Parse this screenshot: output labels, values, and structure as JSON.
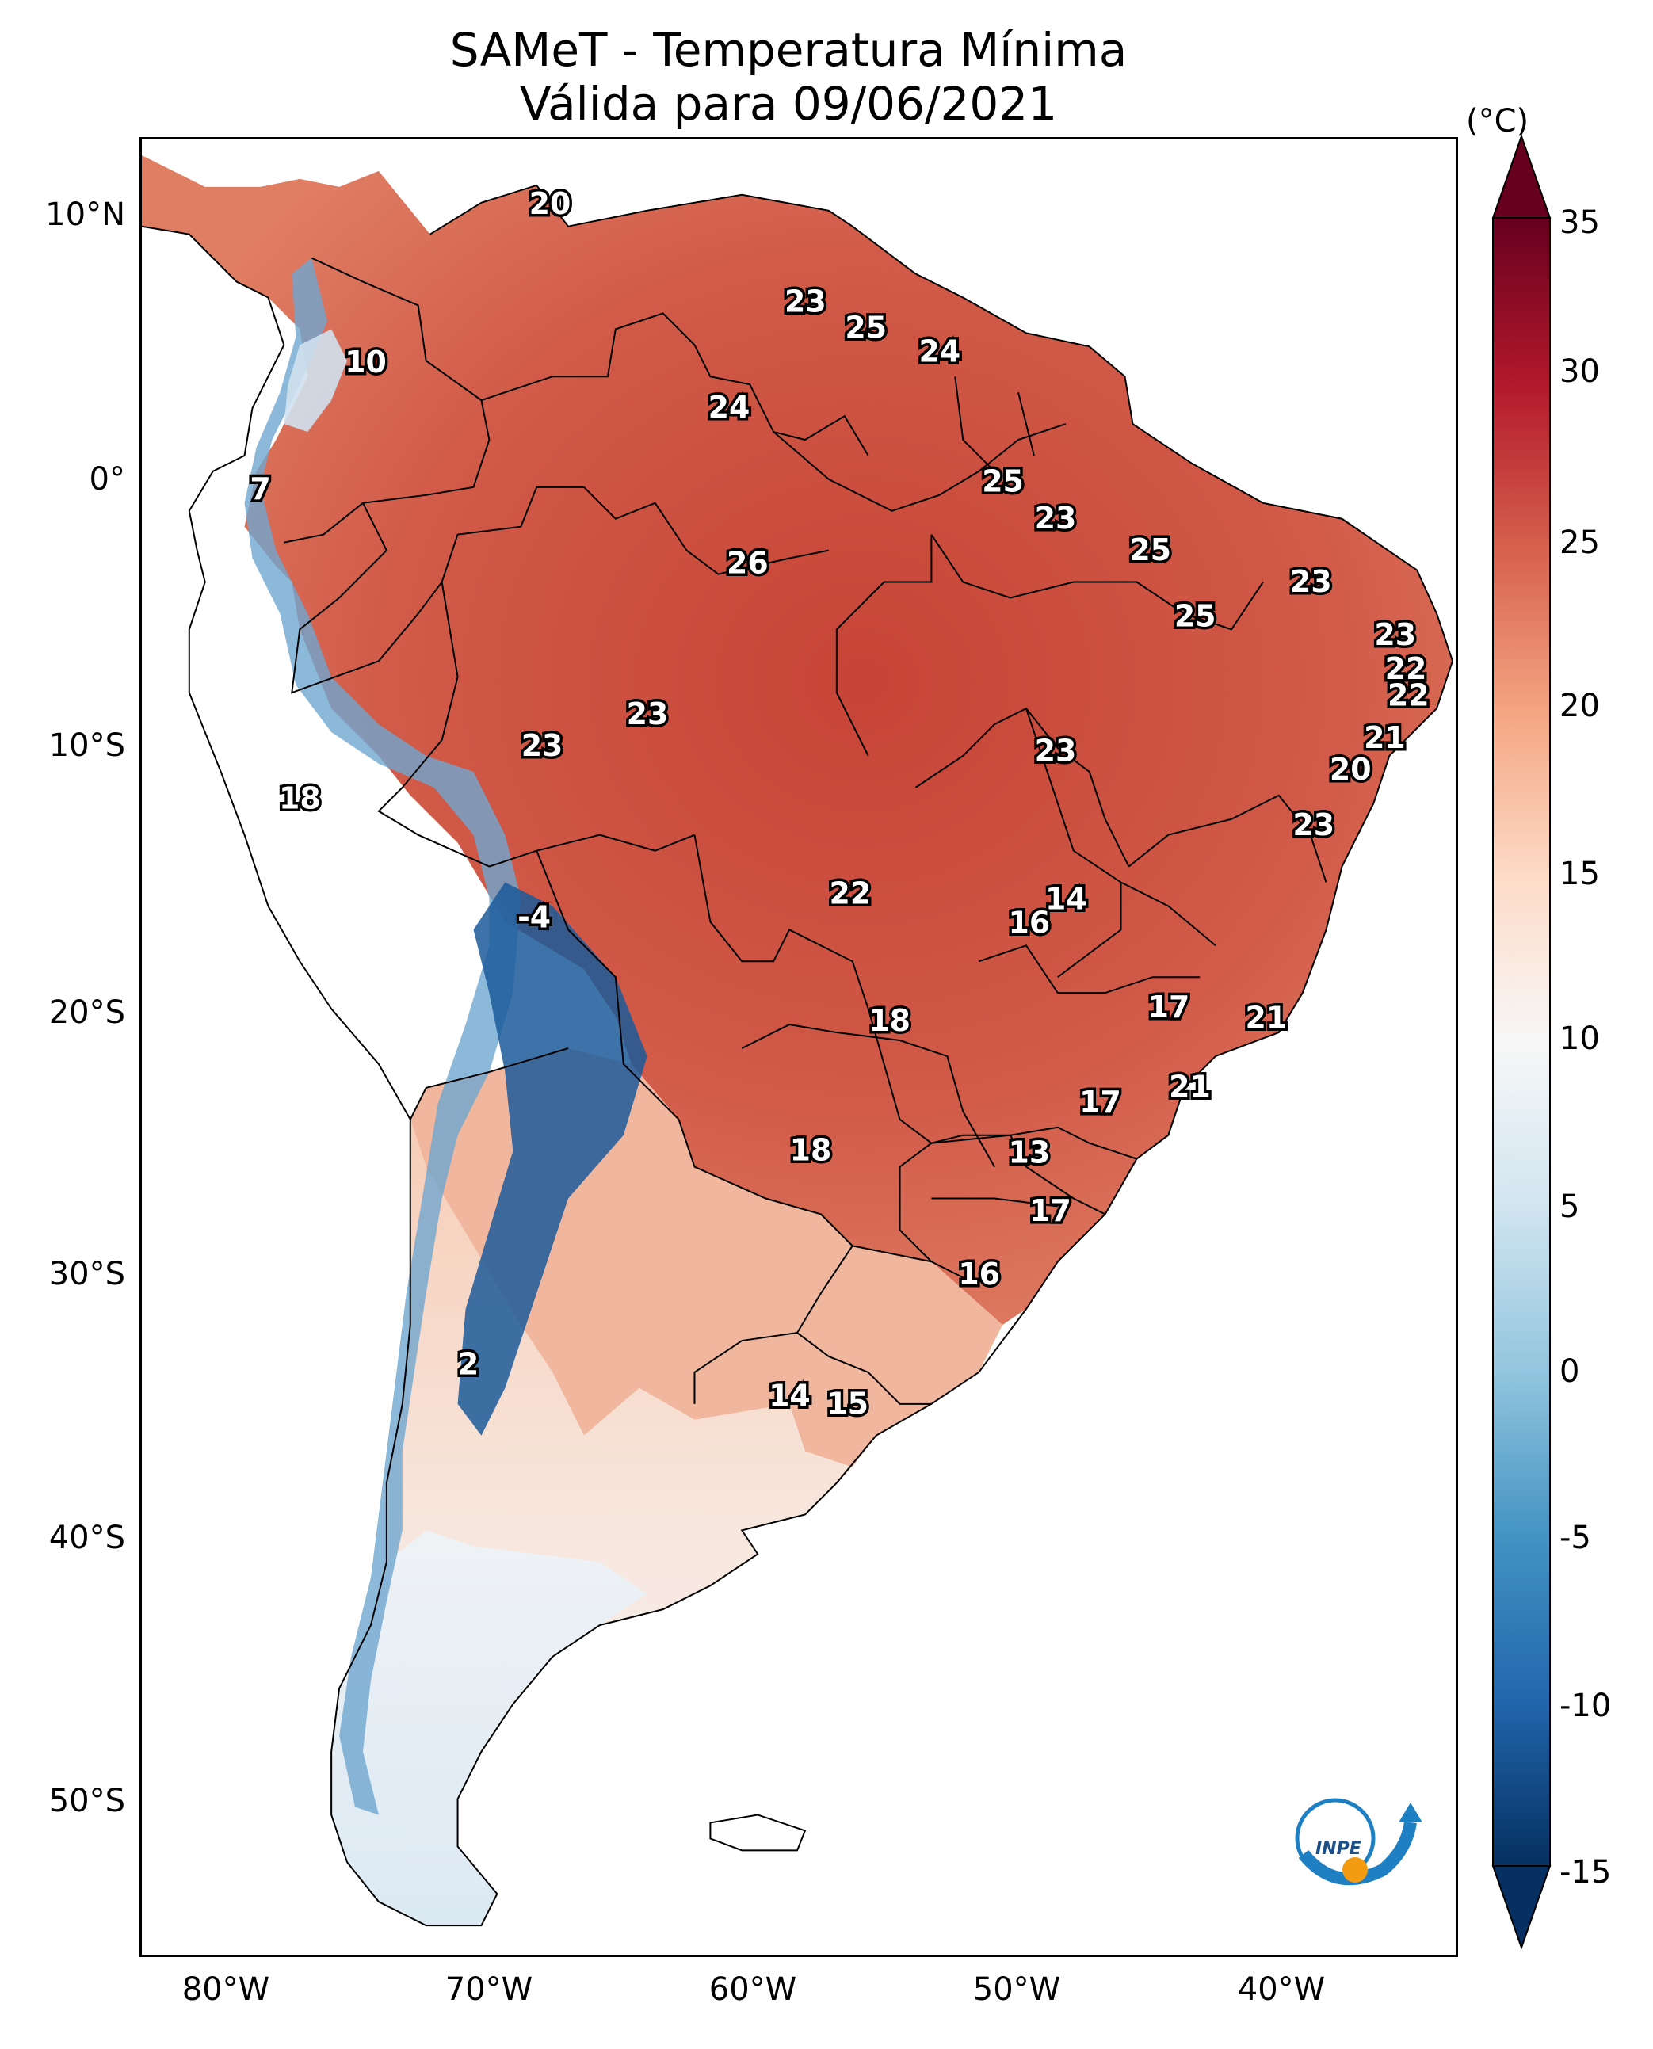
{
  "title": "SAMeT - Temperatura Mínima",
  "subtitle": "Válida para 09/06/2021",
  "colorbar": {
    "unit": "(°C)",
    "ticks": [
      "35",
      "30",
      "25",
      "20",
      "15",
      "10",
      "5",
      "0",
      "-5",
      "-10",
      "-15"
    ],
    "range": [
      -15,
      35
    ],
    "colors": [
      "#053061",
      "#2166ac",
      "#4393c3",
      "#92c5de",
      "#d1e5f0",
      "#f7f7f7",
      "#fddbc7",
      "#f4a582",
      "#d6604d",
      "#b2182b",
      "#67001f"
    ]
  },
  "axes": {
    "lat_labels": [
      "10°N",
      "0°",
      "10°S",
      "20°S",
      "30°S",
      "40°S",
      "50°S"
    ],
    "lon_labels": [
      "80°W",
      "70°W",
      "60°W",
      "50°W",
      "40°W"
    ]
  },
  "map": {
    "region": "South America",
    "point_values": [
      {
        "value": "20",
        "lon": -67.5,
        "lat": 10.5
      },
      {
        "value": "10",
        "lon": -74.5,
        "lat": 4.5
      },
      {
        "value": "7",
        "lon": -78.5,
        "lat": -0.3
      },
      {
        "value": "23",
        "lon": -57.8,
        "lat": 6.8
      },
      {
        "value": "25",
        "lon": -55.5,
        "lat": 5.8
      },
      {
        "value": "24",
        "lon": -52.7,
        "lat": 4.9
      },
      {
        "value": "24",
        "lon": -60.7,
        "lat": 2.8
      },
      {
        "value": "25",
        "lon": -50.3,
        "lat": 0.0
      },
      {
        "value": "23",
        "lon": -48.3,
        "lat": -1.4
      },
      {
        "value": "26",
        "lon": -60.0,
        "lat": -3.1
      },
      {
        "value": "25",
        "lon": -44.7,
        "lat": -2.6
      },
      {
        "value": "23",
        "lon": -38.6,
        "lat": -3.8
      },
      {
        "value": "25",
        "lon": -43.0,
        "lat": -5.1
      },
      {
        "value": "23",
        "lon": -35.4,
        "lat": -5.8
      },
      {
        "value": "22",
        "lon": -35.0,
        "lat": -7.1
      },
      {
        "value": "22",
        "lon": -34.9,
        "lat": -8.1
      },
      {
        "value": "21",
        "lon": -35.8,
        "lat": -9.7
      },
      {
        "value": "20",
        "lon": -37.1,
        "lat": -10.9
      },
      {
        "value": "23",
        "lon": -38.5,
        "lat": -13.0
      },
      {
        "value": "23",
        "lon": -63.8,
        "lat": -8.8
      },
      {
        "value": "23",
        "lon": -67.8,
        "lat": -10.0
      },
      {
        "value": "23",
        "lon": -48.3,
        "lat": -10.2
      },
      {
        "value": "18",
        "lon": -77.0,
        "lat": -12.0
      },
      {
        "value": "-4",
        "lon": -68.1,
        "lat": -16.5
      },
      {
        "value": "22",
        "lon": -56.1,
        "lat": -15.6
      },
      {
        "value": "14",
        "lon": -47.9,
        "lat": -15.8
      },
      {
        "value": "16",
        "lon": -49.3,
        "lat": -16.7
      },
      {
        "value": "17",
        "lon": -44.0,
        "lat": -19.9
      },
      {
        "value": "21",
        "lon": -40.3,
        "lat": -20.3
      },
      {
        "value": "18",
        "lon": -54.6,
        "lat": -20.4
      },
      {
        "value": "21",
        "lon": -43.2,
        "lat": -22.9
      },
      {
        "value": "17",
        "lon": -46.6,
        "lat": -23.5
      },
      {
        "value": "18",
        "lon": -57.6,
        "lat": -25.3
      },
      {
        "value": "13",
        "lon": -49.3,
        "lat": -25.4
      },
      {
        "value": "17",
        "lon": -48.5,
        "lat": -27.6
      },
      {
        "value": "16",
        "lon": -51.2,
        "lat": -30.0
      },
      {
        "value": "2",
        "lon": -70.6,
        "lat": -33.4
      },
      {
        "value": "14",
        "lon": -58.4,
        "lat": -34.6
      },
      {
        "value": "15",
        "lon": -56.2,
        "lat": -34.9
      }
    ]
  },
  "logo": {
    "text": "INPE"
  }
}
